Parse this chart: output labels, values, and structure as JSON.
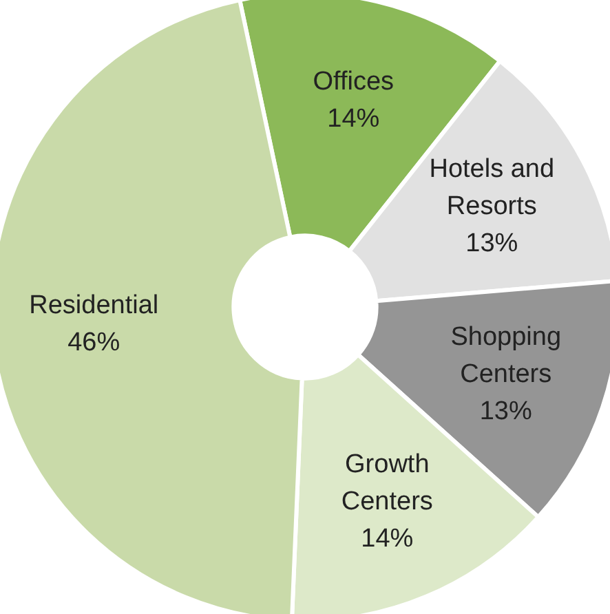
{
  "chart_data": {
    "type": "donut",
    "categories": [
      "Offices",
      "Hotels and Resorts",
      "Shopping Centers",
      "Growth Centers",
      "Residential"
    ],
    "values": [
      14,
      13,
      13,
      14,
      46
    ],
    "value_labels": [
      "14%",
      "13%",
      "13%",
      "14%",
      "46%"
    ],
    "colors": [
      "#8cb958",
      "#e1e1e1",
      "#959595",
      "#dde9c9",
      "#c9daa9"
    ],
    "legend": false
  }
}
